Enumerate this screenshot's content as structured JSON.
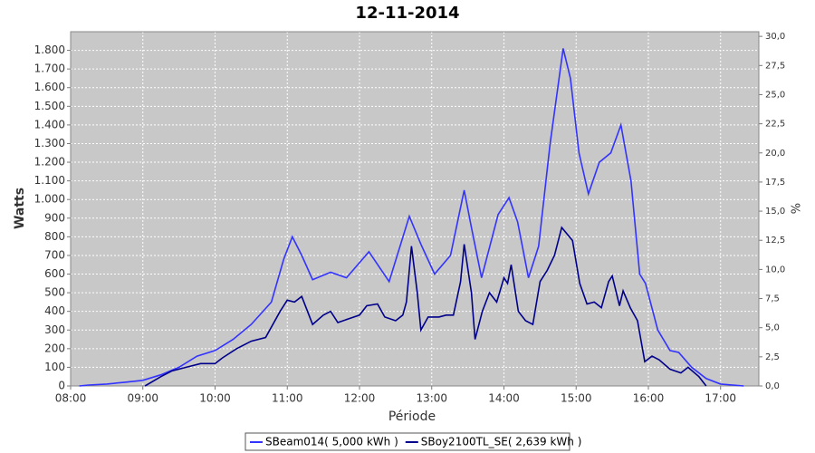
{
  "chart_data": {
    "type": "line",
    "title": "12-11-2014",
    "x_label": "Période",
    "y_label": "Watts",
    "y2_label": "%",
    "xlim": [
      8,
      17.53
    ],
    "xticks": [
      {
        "value": 8,
        "label": "08:00"
      },
      {
        "value": 9,
        "label": "09:00"
      },
      {
        "value": 10,
        "label": "10:00"
      },
      {
        "value": 11,
        "label": "11:00"
      },
      {
        "value": 12,
        "label": "12:00"
      },
      {
        "value": 13,
        "label": "13:00"
      },
      {
        "value": 14,
        "label": "14:00"
      },
      {
        "value": 15,
        "label": "15:00"
      },
      {
        "value": 16,
        "label": "16:00"
      },
      {
        "value": 17,
        "label": "17:00"
      }
    ],
    "ylim": [
      0,
      1900
    ],
    "yticks": [
      0,
      100,
      200,
      300,
      400,
      500,
      600,
      700,
      800,
      900,
      {
        "value": 1000,
        "label": "1.000"
      },
      {
        "value": 1100,
        "label": "1.100"
      },
      {
        "value": 1200,
        "label": "1.200"
      },
      {
        "value": 1300,
        "label": "1.300"
      },
      {
        "value": 1400,
        "label": "1.400"
      },
      {
        "value": 1500,
        "label": "1.500"
      },
      {
        "value": 1600,
        "label": "1.600"
      },
      {
        "value": 1700,
        "label": "1.700"
      },
      {
        "value": 1800,
        "label": "1.800"
      }
    ],
    "y2lim": [
      0,
      30.4
    ],
    "y2ticks": [
      {
        "value": 0,
        "label": "0,0"
      },
      {
        "value": 2.5,
        "label": "2,5"
      },
      {
        "value": 5,
        "label": "5,0"
      },
      {
        "value": 7.5,
        "label": "7,5"
      },
      {
        "value": 10,
        "label": "10,0"
      },
      {
        "value": 12.5,
        "label": "12,5"
      },
      {
        "value": 15,
        "label": "15,0"
      },
      {
        "value": 17.5,
        "label": "17,5"
      },
      {
        "value": 20,
        "label": "20,0"
      },
      {
        "value": 22.5,
        "label": "22,5"
      },
      {
        "value": 25,
        "label": "25,0"
      },
      {
        "value": 27.5,
        "label": "27,5"
      },
      {
        "value": 30,
        "label": "30,0"
      }
    ],
    "grid": true,
    "legend": "bottom",
    "series": [
      {
        "name": "SBeam014( 5,000 kWh )",
        "color": "#3333ff",
        "x": [
          8.12,
          8.25,
          8.5,
          8.75,
          9.0,
          9.25,
          9.5,
          9.75,
          10.0,
          10.25,
          10.5,
          10.78,
          10.95,
          11.07,
          11.2,
          11.35,
          11.6,
          11.82,
          12.13,
          12.41,
          12.69,
          12.85,
          13.04,
          13.26,
          13.45,
          13.55,
          13.69,
          13.92,
          14.07,
          14.19,
          14.34,
          14.48,
          14.64,
          14.82,
          14.92,
          15.04,
          15.17,
          15.32,
          15.48,
          15.62,
          15.76,
          15.88,
          15.96,
          16.13,
          16.3,
          16.42,
          16.6,
          16.8,
          17.0,
          17.32
        ],
        "values": [
          0,
          5,
          10,
          20,
          30,
          60,
          100,
          160,
          190,
          250,
          330,
          450,
          680,
          800,
          700,
          570,
          610,
          580,
          720,
          560,
          910,
          760,
          600,
          700,
          1050,
          850,
          580,
          920,
          1010,
          880,
          580,
          750,
          1300,
          1810,
          1650,
          1250,
          1030,
          1200,
          1250,
          1400,
          1100,
          600,
          550,
          300,
          190,
          180,
          100,
          40,
          10,
          0
        ]
      },
      {
        "name": "SBoy2100TL_SE( 2,639 kWh )",
        "color": "#00008b",
        "x": [
          9.03,
          9.25,
          9.4,
          9.6,
          9.8,
          10.0,
          10.1,
          10.3,
          10.5,
          10.7,
          10.9,
          11.0,
          11.1,
          11.2,
          11.35,
          11.5,
          11.6,
          11.7,
          11.85,
          12.0,
          12.1,
          12.25,
          12.35,
          12.5,
          12.6,
          12.65,
          12.72,
          12.8,
          12.85,
          12.95,
          13.1,
          13.2,
          13.3,
          13.4,
          13.45,
          13.55,
          13.6,
          13.7,
          13.8,
          13.9,
          14.0,
          14.05,
          14.1,
          14.2,
          14.3,
          14.4,
          14.5,
          14.6,
          14.7,
          14.8,
          14.95,
          15.05,
          15.15,
          15.25,
          15.35,
          15.45,
          15.5,
          15.6,
          15.65,
          15.75,
          15.85,
          15.95,
          16.05,
          16.15,
          16.3,
          16.45,
          16.55,
          16.7,
          16.8
        ],
        "values": [
          0,
          50,
          80,
          100,
          120,
          120,
          150,
          200,
          240,
          260,
          400,
          460,
          450,
          480,
          330,
          380,
          400,
          340,
          360,
          380,
          430,
          440,
          370,
          350,
          380,
          450,
          750,
          500,
          300,
          370,
          370,
          380,
          380,
          560,
          760,
          500,
          250,
          400,
          500,
          450,
          580,
          550,
          650,
          400,
          350,
          330,
          560,
          620,
          700,
          850,
          780,
          550,
          440,
          450,
          420,
          560,
          590,
          430,
          510,
          420,
          350,
          130,
          160,
          140,
          90,
          70,
          100,
          50,
          0
        ]
      }
    ]
  }
}
